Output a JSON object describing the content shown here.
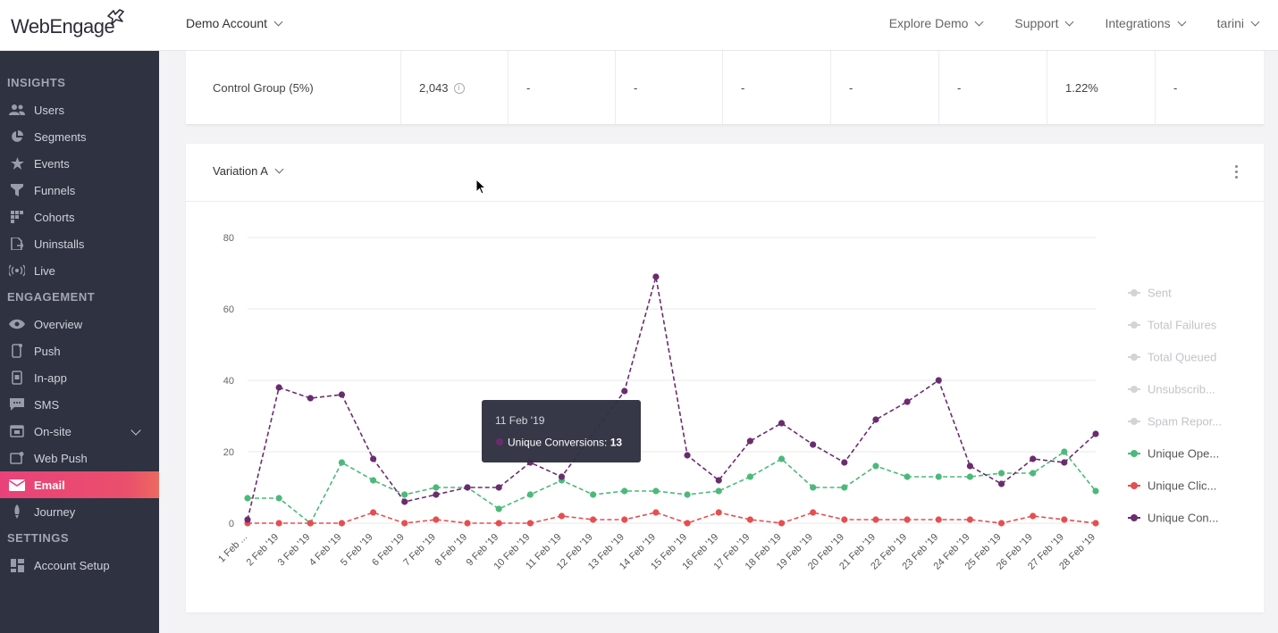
{
  "brand": {
    "logo_text": "WebEngage"
  },
  "header": {
    "account": "Demo Account",
    "nav": [
      "Explore Demo",
      "Support",
      "Integrations",
      "tarini"
    ]
  },
  "sidebar": {
    "insights_title": "INSIGHTS",
    "insights": [
      {
        "label": "Users",
        "icon": "users-icon"
      },
      {
        "label": "Segments",
        "icon": "pie-icon"
      },
      {
        "label": "Events",
        "icon": "star-icon"
      },
      {
        "label": "Funnels",
        "icon": "funnel-icon"
      },
      {
        "label": "Cohorts",
        "icon": "grid-icon"
      },
      {
        "label": "Uninstalls",
        "icon": "uninstall-icon"
      },
      {
        "label": "Live",
        "icon": "live-icon"
      }
    ],
    "engagement_title": "ENGAGEMENT",
    "engagement": [
      {
        "label": "Overview",
        "icon": "eye-icon"
      },
      {
        "label": "Push",
        "icon": "phone-icon"
      },
      {
        "label": "In-app",
        "icon": "in-app-icon"
      },
      {
        "label": "SMS",
        "icon": "sms-icon"
      },
      {
        "label": "On-site",
        "icon": "on-site-icon"
      },
      {
        "label": "Web Push",
        "icon": "web-push-icon"
      },
      {
        "label": "Email",
        "icon": "mail-icon"
      },
      {
        "label": "Journey",
        "icon": "journey-icon"
      }
    ],
    "settings_title": "SETTINGS",
    "settings": [
      {
        "label": "Account Setup",
        "icon": "account-setup-icon"
      }
    ]
  },
  "table_row": {
    "label": "Control Group (5%)",
    "count": "2,043",
    "cells": [
      "-",
      "-",
      "-",
      "-",
      "-",
      "1.22%",
      "-"
    ]
  },
  "card": {
    "variation": "Variation A"
  },
  "tooltip": {
    "date": "11 Feb '19",
    "series": "Unique Conversions:",
    "value": "13"
  },
  "colors": {
    "accent": "#e9427a",
    "sidebar": "#2f3241",
    "conversions": "#6b2c6f",
    "opens": "#4cb97a",
    "clicks": "#e64e50",
    "disabled": "#d4d4d8"
  },
  "chart_data": {
    "type": "line",
    "categories": [
      "1 Feb '19",
      "2 Feb '19",
      "3 Feb '19",
      "4 Feb '19",
      "5 Feb '19",
      "6 Feb '19",
      "7 Feb '19",
      "8 Feb '19",
      "9 Feb '19",
      "10 Feb '19",
      "11 Feb '19",
      "12 Feb '19",
      "13 Feb '19",
      "14 Feb '19",
      "15 Feb '19",
      "16 Feb '19",
      "17 Feb '19",
      "18 Feb '19",
      "19 Feb '19",
      "20 Feb '19",
      "21 Feb '19",
      "22 Feb '19",
      "23 Feb '19",
      "24 Feb '19",
      "25 Feb '19",
      "26 Feb '19",
      "27 Feb '19",
      "28 Feb '19"
    ],
    "tick_labels": [
      "1 Feb ...",
      "2 Feb '19",
      "3 Feb '19",
      "4 Feb '19",
      "5 Feb '19",
      "6 Feb '19",
      "7 Feb '19",
      "8 Feb '19",
      "9 Feb '19",
      "10 Feb '19",
      "11 Feb '19",
      "12 Feb '19",
      "13 Feb '19",
      "14 Feb '19",
      "15 Feb '19",
      "16 Feb '19",
      "17 Feb '19",
      "18 Feb '19",
      "19 Feb '19",
      "20 Feb '19",
      "21 Feb '19",
      "22 Feb '19",
      "23 Feb '19",
      "24 Feb '19",
      "25 Feb '19",
      "26 Feb '19",
      "27 Feb '19",
      "28 Feb '19"
    ],
    "yticks": [
      0,
      20,
      40,
      60,
      80
    ],
    "ylim": [
      0,
      80
    ],
    "grid": true,
    "legend_position": "right",
    "legend": [
      {
        "label": "Sent",
        "active": false
      },
      {
        "label": "Total Failures",
        "active": false
      },
      {
        "label": "Total Queued",
        "active": false
      },
      {
        "label": "Unsubscrib...",
        "active": false
      },
      {
        "label": "Spam Repor...",
        "active": false
      },
      {
        "label": "Unique Ope...",
        "active": true,
        "color": "#4cb97a"
      },
      {
        "label": "Unique Clic...",
        "active": true,
        "color": "#e64e50"
      },
      {
        "label": "Unique Con...",
        "active": true,
        "color": "#6b2c6f"
      }
    ],
    "series": [
      {
        "key": "opens",
        "color": "#4cb97a",
        "values": [
          7,
          7,
          0,
          17,
          12,
          8,
          10,
          10,
          4,
          8,
          12,
          8,
          9,
          9,
          8,
          9,
          13,
          18,
          10,
          10,
          16,
          13,
          13,
          13,
          14,
          14,
          20,
          9
        ]
      },
      {
        "key": "clicks",
        "color": "#e64e50",
        "values": [
          0,
          0,
          0,
          0,
          3,
          0,
          1,
          0,
          0,
          0,
          2,
          1,
          1,
          3,
          0,
          3,
          1,
          0,
          3,
          1,
          1,
          1,
          1,
          1,
          0,
          2,
          1,
          0
        ]
      },
      {
        "key": "conversions",
        "color": "#6b2c6f",
        "values": [
          1,
          38,
          35,
          36,
          18,
          6,
          8,
          10,
          10,
          17,
          13,
          null,
          37,
          69,
          19,
          12,
          23,
          28,
          22,
          17,
          29,
          34,
          40,
          16,
          11,
          18,
          17,
          25
        ]
      }
    ],
    "highlight_index": 10
  }
}
